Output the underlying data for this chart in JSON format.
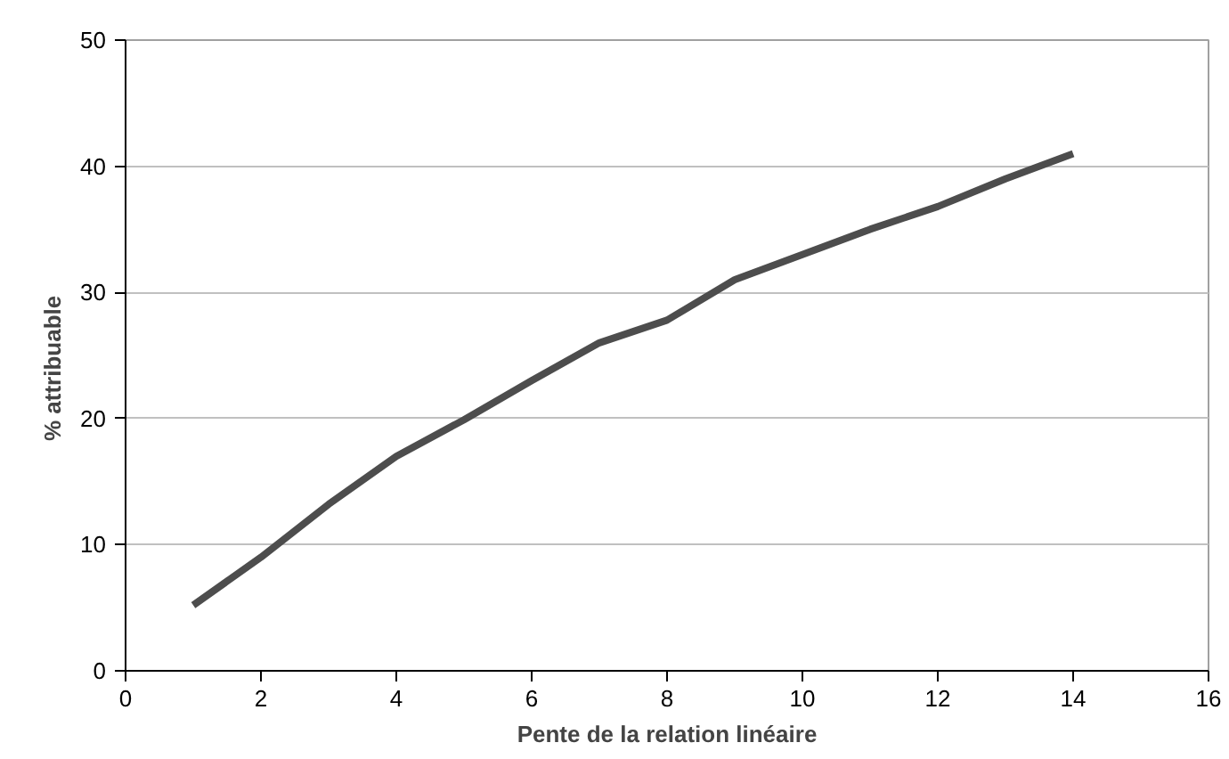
{
  "chart_data": {
    "type": "line",
    "xlabel": "Pente de la relation linéaire",
    "ylabel": "%     attribuable",
    "x": [
      1,
      2,
      3,
      4,
      5,
      6,
      7,
      8,
      9,
      10,
      11,
      12,
      13,
      14
    ],
    "series": [
      {
        "color": "#4d4d4d",
        "values": [
          5.2,
          9,
          13.2,
          17,
          19.9,
          23,
          26,
          27.8,
          31,
          33,
          35,
          36.8,
          39,
          41
        ]
      }
    ],
    "xlim": [
      0,
      16
    ],
    "xticks": [
      0,
      2,
      4,
      6,
      8,
      10,
      12,
      14,
      16
    ],
    "ylim": [
      0,
      50
    ],
    "yticks": [
      0,
      10,
      20,
      30,
      40,
      50
    ],
    "grid": "y",
    "marker": "none",
    "line_style": "solid"
  }
}
